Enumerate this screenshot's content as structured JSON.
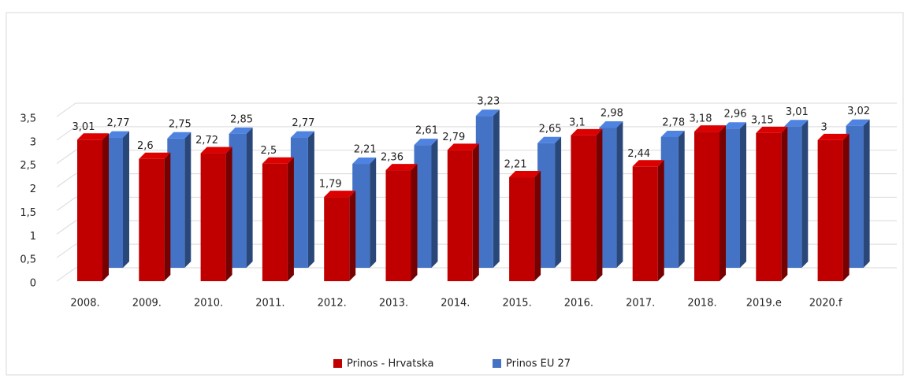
{
  "chart_data": {
    "type": "bar3d",
    "categories": [
      "2008.",
      "2009.",
      "2010.",
      "2011.",
      "2012.",
      "2013.",
      "2014.",
      "2015.",
      "2016.",
      "2017.",
      "2018.",
      "2019.e",
      "2020.f"
    ],
    "series": [
      {
        "name": "Prinos - Hrvatska",
        "color": "#c00000",
        "values": [
          3.01,
          2.6,
          2.72,
          2.5,
          1.79,
          2.36,
          2.79,
          2.21,
          3.1,
          2.44,
          3.18,
          3.15,
          3
        ],
        "value_labels": [
          "3,01",
          "2,6",
          "2,72",
          "2,5",
          "1,79",
          "2,36",
          "2,79",
          "2,21",
          "3,1",
          "2,44",
          "3,18",
          "3,15",
          "3"
        ]
      },
      {
        "name": "Prinos EU 27",
        "color": "#4472c4",
        "values": [
          2.77,
          2.75,
          2.85,
          2.77,
          2.21,
          2.61,
          3.23,
          2.65,
          2.98,
          2.78,
          2.96,
          3.01,
          3.02
        ],
        "value_labels": [
          "2,77",
          "2,75",
          "2,85",
          "2,77",
          "2,21",
          "2,61",
          "3,23",
          "2,65",
          "2,98",
          "2,78",
          "2,96",
          "3,01",
          "3,02"
        ]
      }
    ],
    "ylim": [
      0,
      3.5
    ],
    "yticks": [
      0,
      {
        "value": 0.5,
        "label": "0,5"
      },
      1,
      {
        "value": 1.5,
        "label": "1,5"
      },
      2,
      {
        "value": 2.5,
        "label": "2,5"
      },
      3,
      {
        "value": 3.5,
        "label": "3,5"
      }
    ],
    "grid": true
  }
}
